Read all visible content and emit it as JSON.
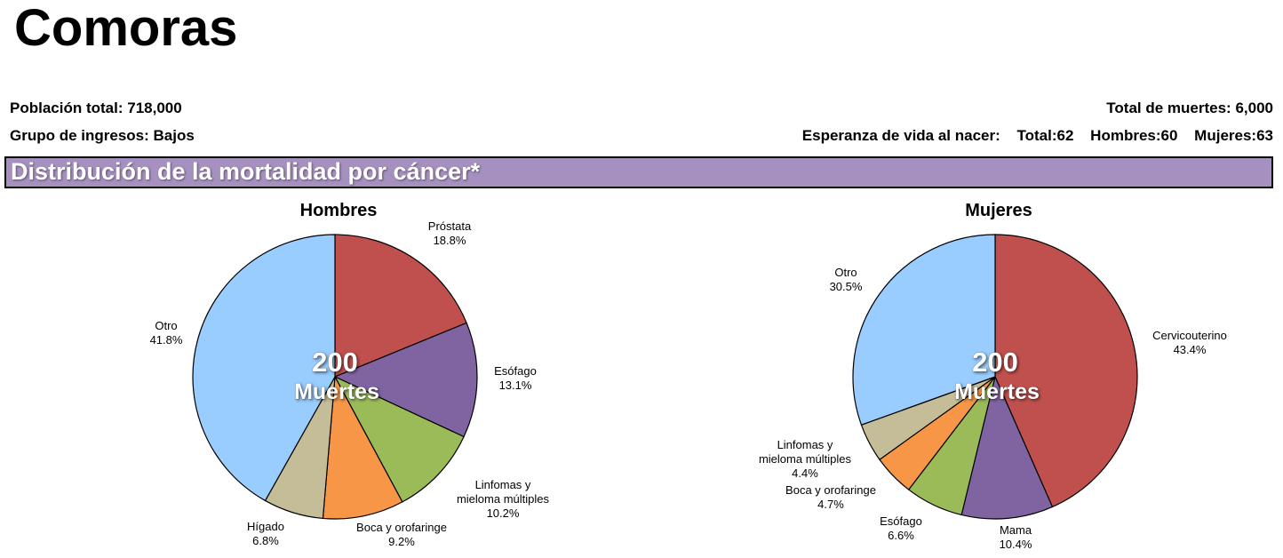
{
  "country": "Comoras",
  "stats": {
    "population_label": "Población total:",
    "population_value": "718,000",
    "income_label": "Grupo de ingresos:",
    "income_value": "Bajos",
    "deaths_label": "Total de muertes:",
    "deaths_value": "6,000",
    "life_label": "Esperanza de vida al nacer:",
    "life_total": "Total:62",
    "life_men": "Hombres:60",
    "life_women": "Mujeres:63"
  },
  "section_title": "Distribución de la mortalidad por cáncer*",
  "colors": {
    "red": "#c0504d",
    "purple": "#8064a2",
    "green": "#9bbb59",
    "orange": "#f79646",
    "tan": "#c4bd97",
    "blue": "#99ccff"
  },
  "chart_data": [
    {
      "type": "pie",
      "title": "Hombres",
      "center_value": "200",
      "center_label": "Muertes",
      "slices": [
        {
          "label": [
            "Próstata"
          ],
          "value": 18.8,
          "display": "18.8%",
          "color": "#c0504d"
        },
        {
          "label": [
            "Esófago"
          ],
          "value": 13.1,
          "display": "13.1%",
          "color": "#8064a2"
        },
        {
          "label": [
            "Linfomas y",
            "mieloma múltiples"
          ],
          "value": 10.2,
          "display": "10.2%",
          "color": "#9bbb59"
        },
        {
          "label": [
            "Boca y orofaringe"
          ],
          "value": 9.2,
          "display": "9.2%",
          "color": "#f79646"
        },
        {
          "label": [
            "Hígado"
          ],
          "value": 6.8,
          "display": "6.8%",
          "color": "#c4bd97"
        },
        {
          "label": [
            "Otro"
          ],
          "value": 41.8,
          "display": "41.8%",
          "color": "#99ccff"
        }
      ]
    },
    {
      "type": "pie",
      "title": "Mujeres",
      "center_value": "200",
      "center_label": "Muertes",
      "slices": [
        {
          "label": [
            "Cervicouterino"
          ],
          "value": 43.4,
          "display": "43.4%",
          "color": "#c0504d"
        },
        {
          "label": [
            "Mama"
          ],
          "value": 10.4,
          "display": "10.4%",
          "color": "#8064a2"
        },
        {
          "label": [
            "Esófago"
          ],
          "value": 6.6,
          "display": "6.6%",
          "color": "#9bbb59"
        },
        {
          "label": [
            "Boca y orofaringe"
          ],
          "value": 4.7,
          "display": "4.7%",
          "color": "#f79646"
        },
        {
          "label": [
            "Linfomas y",
            "mieloma múltiples"
          ],
          "value": 4.4,
          "display": "4.4%",
          "color": "#c4bd97"
        },
        {
          "label": [
            "Otro"
          ],
          "value": 30.5,
          "display": "30.5%",
          "color": "#99ccff"
        }
      ]
    }
  ]
}
